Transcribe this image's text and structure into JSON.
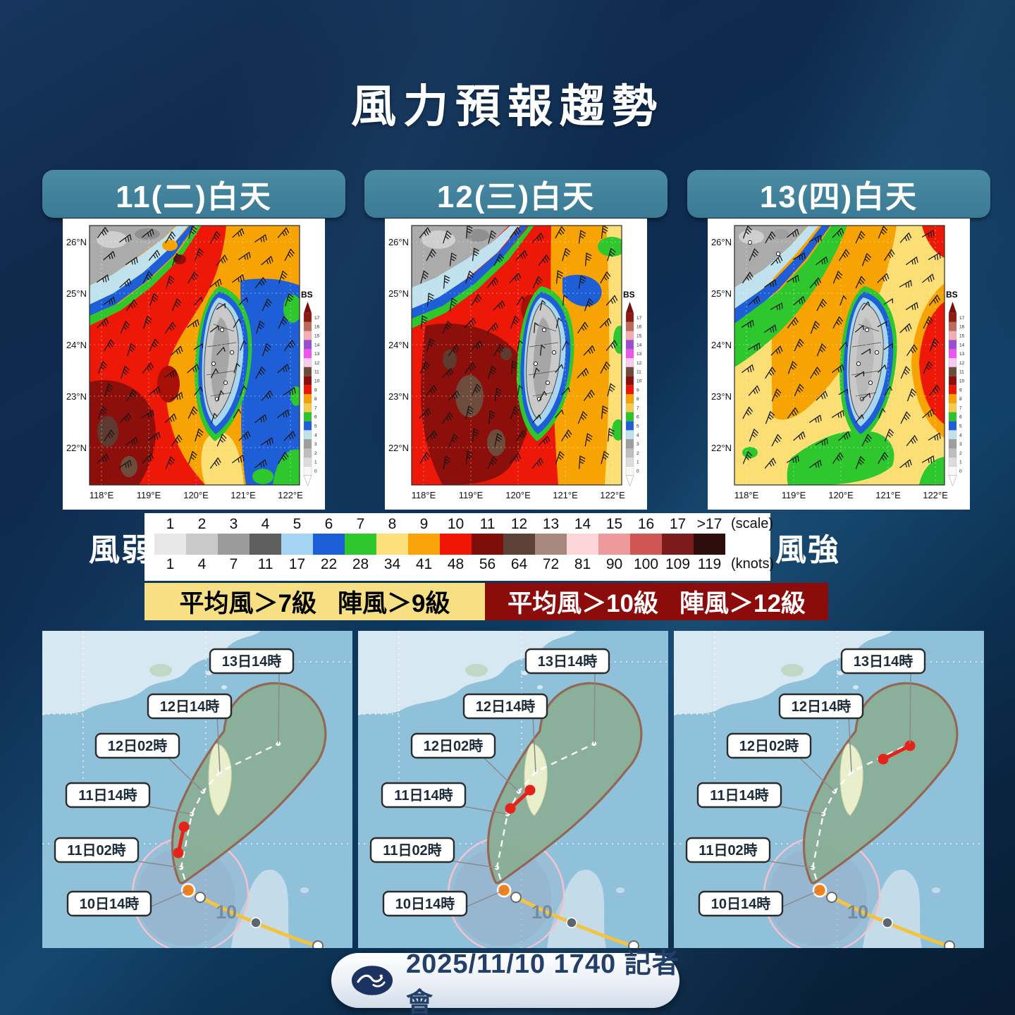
{
  "title": "風力預報趨勢",
  "forecast_panels": [
    {
      "label": "11(二)白天"
    },
    {
      "label": "12(三)白天"
    },
    {
      "label": "13(四)白天"
    }
  ],
  "wind_map": {
    "colorbar_label": "BS",
    "lat_labels": [
      "26°N",
      "25°N",
      "24°N",
      "23°N",
      "22°N"
    ],
    "lon_labels": [
      "118°E",
      "119°E",
      "120°E",
      "121°E",
      "122°E"
    ],
    "bs_ticks": [
      "17",
      "16",
      "15",
      "14",
      "13",
      "12",
      "11",
      "10",
      "9",
      "8",
      "7",
      "6",
      "5",
      "4",
      "3",
      "2",
      "1",
      "0"
    ],
    "bs_colors": [
      "#8C1A10",
      "#BC6A5C",
      "#F2AEB2",
      "#9B4FD0",
      "#EE55EE",
      "#F9C9F2",
      "#6E4C3C",
      "#8C0F0B",
      "#EE1506",
      "#F6A203",
      "#F5CB4E",
      "#2DC32D",
      "#1E5FD8",
      "#BFE2EE",
      "#9E9E9E",
      "#BEBEBE",
      "#DCDCDC",
      "#F8F8F8"
    ]
  },
  "legend": {
    "weak_label": "風弱",
    "strong_label": "風強",
    "scale_unit": "(scale)",
    "knots_unit": "(knots)",
    "cells": [
      {
        "scale": "1",
        "knots": "1",
        "color": "#E7E7E7"
      },
      {
        "scale": "2",
        "knots": "4",
        "color": "#C9C9C9"
      },
      {
        "scale": "3",
        "knots": "7",
        "color": "#9B9B9B"
      },
      {
        "scale": "4",
        "knots": "11",
        "color": "#5F5F5F"
      },
      {
        "scale": "5",
        "knots": "17",
        "color": "#A5D3F3"
      },
      {
        "scale": "6",
        "knots": "22",
        "color": "#1C5FD9"
      },
      {
        "scale": "7",
        "knots": "28",
        "color": "#2EC72E"
      },
      {
        "scale": "8",
        "knots": "34",
        "color": "#FDE07C"
      },
      {
        "scale": "9",
        "knots": "41",
        "color": "#FBA30A"
      },
      {
        "scale": "10",
        "knots": "48",
        "color": "#F11506"
      },
      {
        "scale": "11",
        "knots": "56",
        "color": "#7E0E0A"
      },
      {
        "scale": "12",
        "knots": "64",
        "color": "#5F4237"
      },
      {
        "scale": "13",
        "knots": "72",
        "color": "#A8877F"
      },
      {
        "scale": "14",
        "knots": "81",
        "color": "#FCD5D9"
      },
      {
        "scale": "15",
        "knots": "90",
        "color": "#EE999B"
      },
      {
        "scale": "16",
        "knots": "100",
        "color": "#D05555"
      },
      {
        "scale": "17",
        "knots": "109",
        "color": "#7C1B1B"
      },
      {
        "scale": ">17",
        "knots": "119",
        "color": "#2E0D0D"
      }
    ]
  },
  "banners": [
    {
      "avg": "平均風＞7級",
      "gust": "陣風＞9級"
    },
    {
      "avg": "平均風＞10級",
      "gust": "陣風＞12級"
    }
  ],
  "track_maps": {
    "time_labels": [
      "13日14時",
      "12日14時",
      "12日02時",
      "11日14時",
      "11日02時",
      "10日14時"
    ],
    "storm_number": "10",
    "panels": [
      {
        "highlight": "11日02時-11日14時"
      },
      {
        "highlight": "11日14時-12日02時"
      },
      {
        "highlight": "12日14時-13日14時"
      }
    ]
  },
  "footer": {
    "date_text": "2025/11/10 1740 記者會"
  }
}
